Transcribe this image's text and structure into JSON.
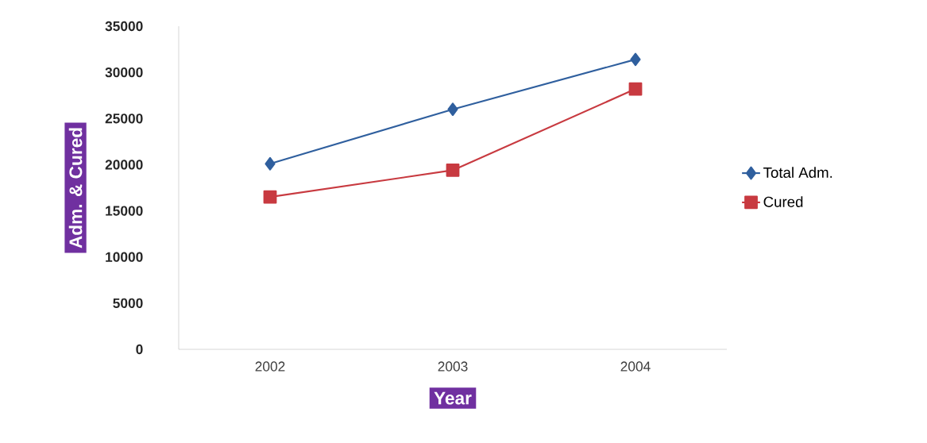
{
  "chart_data": {
    "type": "line",
    "xlabel": "Year",
    "ylabel": "Adm. & Cured",
    "categories": [
      "2002",
      "2003",
      "2004"
    ],
    "series": [
      {
        "name": "Total Adm.",
        "color": "#2f5f9e",
        "marker": "diamond",
        "values": [
          20100,
          26000,
          31400
        ]
      },
      {
        "name": "Cured",
        "color": "#c83a40",
        "marker": "square",
        "values": [
          16500,
          19400,
          28200
        ]
      }
    ],
    "ylim": [
      0,
      35000
    ],
    "yticks": [
      0,
      5000,
      10000,
      15000,
      20000,
      25000,
      30000,
      35000
    ],
    "grid": false,
    "legend": "right",
    "line_style": "solid"
  }
}
